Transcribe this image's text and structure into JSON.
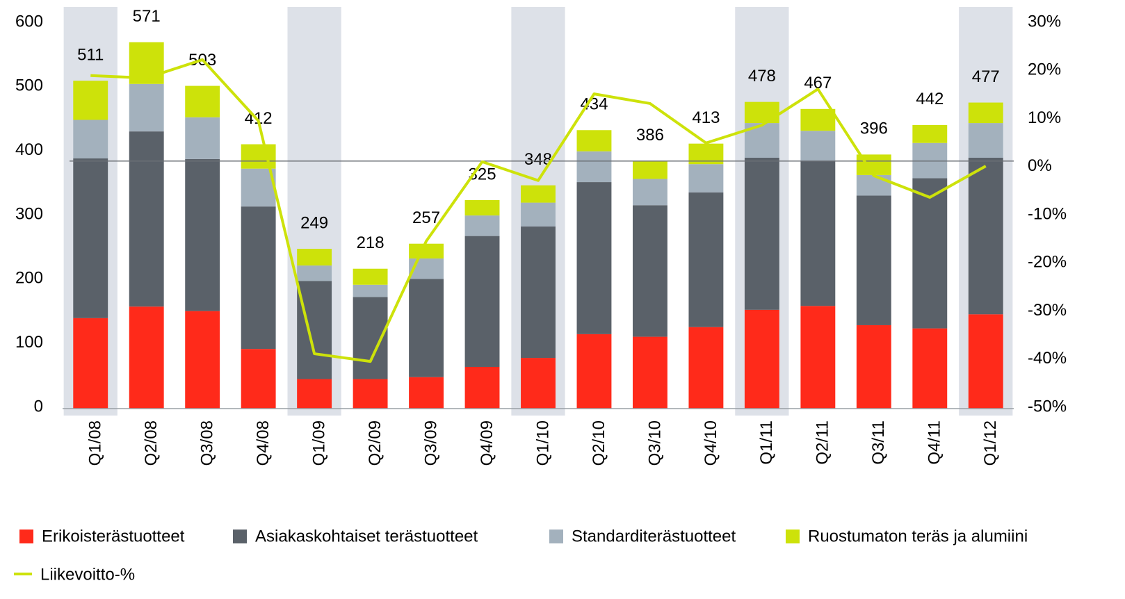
{
  "chart_data": {
    "type": "bar",
    "stacked": true,
    "categories": [
      "Q1/08",
      "Q2/08",
      "Q3/08",
      "Q4/08",
      "Q1/09",
      "Q2/09",
      "Q3/09",
      "Q4/09",
      "Q1/10",
      "Q2/10",
      "Q3/10",
      "Q4/10",
      "Q1/11",
      "Q2/11",
      "Q3/11",
      "Q4/11",
      "Q1/12"
    ],
    "series": [
      {
        "name": "Erikoisterästuotteet",
        "color": "#ff2a1a",
        "values": [
          141,
          159,
          152,
          93,
          46,
          46,
          49,
          65,
          79,
          116,
          112,
          127,
          154,
          160,
          130,
          125,
          147
        ]
      },
      {
        "name": "Asiakaskohtaiset terästuotteet",
        "color": "#5a6169",
        "values": [
          249,
          273,
          237,
          222,
          153,
          128,
          153,
          204,
          205,
          237,
          205,
          210,
          237,
          226,
          202,
          234,
          244
        ]
      },
      {
        "name": "Standarditerästuotteet",
        "color": "#a3b1bd",
        "values": [
          60,
          74,
          65,
          59,
          24,
          19,
          32,
          32,
          37,
          48,
          41,
          44,
          54,
          47,
          32,
          55,
          54
        ]
      },
      {
        "name": "Ruostumaton teräs ja alumiini",
        "color": "#cde20a",
        "values": [
          61,
          65,
          49,
          38,
          26,
          25,
          23,
          24,
          27,
          33,
          28,
          32,
          33,
          34,
          32,
          28,
          32
        ]
      },
      {
        "name": "Liikevoitto-%",
        "color": "#cde20a",
        "type": "line",
        "axis": "y2",
        "values": [
          19.2,
          18.7,
          22.5,
          9.8,
          -38.6,
          -40.2,
          -15.2,
          1.3,
          -2.6,
          15.4,
          13.4,
          5.2,
          8.9,
          16.4,
          -1.6,
          -6.1,
          0.4
        ]
      }
    ],
    "totals": [
      511,
      571,
      503,
      412,
      249,
      218,
      257,
      325,
      348,
      434,
      386,
      413,
      478,
      467,
      396,
      442,
      477
    ],
    "ylim": [
      0,
      600
    ],
    "yticks": [
      0,
      100,
      200,
      300,
      400,
      500,
      600
    ],
    "y2lim": [
      -50,
      30
    ],
    "y2ticks": [
      {
        "value": -50,
        "label": "-50%"
      },
      {
        "value": -40,
        "label": "-40%"
      },
      {
        "value": -30,
        "label": "-30%"
      },
      {
        "value": -20,
        "label": "-20%"
      },
      {
        "value": -10,
        "label": "-10%"
      },
      {
        "value": 0,
        "label": "0%"
      },
      {
        "value": 10,
        "label": "10%"
      },
      {
        "value": 20,
        "label": "20%"
      },
      {
        "value": 30,
        "label": "30%"
      }
    ],
    "legend": "bottom"
  }
}
